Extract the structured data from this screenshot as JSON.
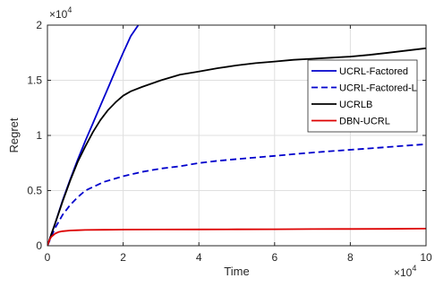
{
  "chart_data": {
    "type": "line",
    "xlabel": "Time",
    "ylabel": "Regret",
    "xlim": [
      0,
      100000
    ],
    "ylim": [
      0,
      20000
    ],
    "x_ticks": [
      0,
      20000,
      40000,
      60000,
      80000,
      100000
    ],
    "x_tick_labels": [
      "0",
      "2",
      "4",
      "6",
      "8",
      "10"
    ],
    "y_ticks": [
      0,
      5000,
      10000,
      15000,
      20000
    ],
    "y_tick_labels": [
      "0",
      "0.5",
      "1",
      "1.5",
      "2"
    ],
    "x_multiplier_base": "×10",
    "x_multiplier_exp": "4",
    "y_multiplier_base": "×10",
    "y_multiplier_exp": "4",
    "grid": true,
    "legend_position": "top-right",
    "series": [
      {
        "name": "UCRL-Factored",
        "color": "#0000cc",
        "dash": "solid",
        "x": [
          0,
          1000,
          2000,
          4000,
          6000,
          8000,
          10000,
          12000,
          14000,
          16000,
          18000,
          20000,
          22000,
          24000
        ],
        "y": [
          0,
          1000,
          2000,
          4100,
          6000,
          7800,
          9500,
          11100,
          12700,
          14300,
          15900,
          17500,
          19000,
          20000
        ]
      },
      {
        "name": "UCRL-Factored-L",
        "color": "#0000cc",
        "dash": "dashed",
        "x": [
          0,
          1000,
          2000,
          4000,
          6000,
          8000,
          10000,
          15000,
          20000,
          25000,
          30000,
          35000,
          40000,
          45000,
          50000,
          55000,
          60000,
          65000,
          70000,
          75000,
          80000,
          85000,
          90000,
          95000,
          100000
        ],
        "y": [
          0,
          800,
          1600,
          2800,
          3700,
          4400,
          5000,
          5800,
          6300,
          6700,
          7000,
          7200,
          7500,
          7700,
          7850,
          8000,
          8150,
          8300,
          8450,
          8580,
          8700,
          8820,
          8950,
          9080,
          9200
        ]
      },
      {
        "name": "UCRLB",
        "color": "#000000",
        "dash": "solid",
        "x": [
          0,
          1000,
          2000,
          4000,
          6000,
          8000,
          10000,
          12000,
          14000,
          16000,
          18000,
          20000,
          22000,
          25000,
          30000,
          35000,
          40000,
          45000,
          50000,
          55000,
          60000,
          65000,
          70000,
          75000,
          80000,
          85000,
          90000,
          95000,
          100000
        ],
        "y": [
          0,
          1000,
          2000,
          4000,
          5900,
          7600,
          9000,
          10300,
          11400,
          12300,
          13000,
          13600,
          14000,
          14400,
          15000,
          15500,
          15800,
          16100,
          16350,
          16550,
          16700,
          16850,
          16950,
          17050,
          17150,
          17300,
          17500,
          17700,
          17900
        ]
      },
      {
        "name": "DBN-UCRL",
        "color": "#dd0000",
        "dash": "solid",
        "x": [
          0,
          500,
          1000,
          2000,
          3000,
          4000,
          6000,
          8000,
          10000,
          15000,
          20000,
          30000,
          40000,
          50000,
          60000,
          70000,
          80000,
          90000,
          100000
        ],
        "y": [
          0,
          500,
          800,
          1100,
          1250,
          1320,
          1380,
          1410,
          1430,
          1450,
          1460,
          1470,
          1480,
          1490,
          1500,
          1510,
          1520,
          1530,
          1550
        ]
      }
    ]
  }
}
